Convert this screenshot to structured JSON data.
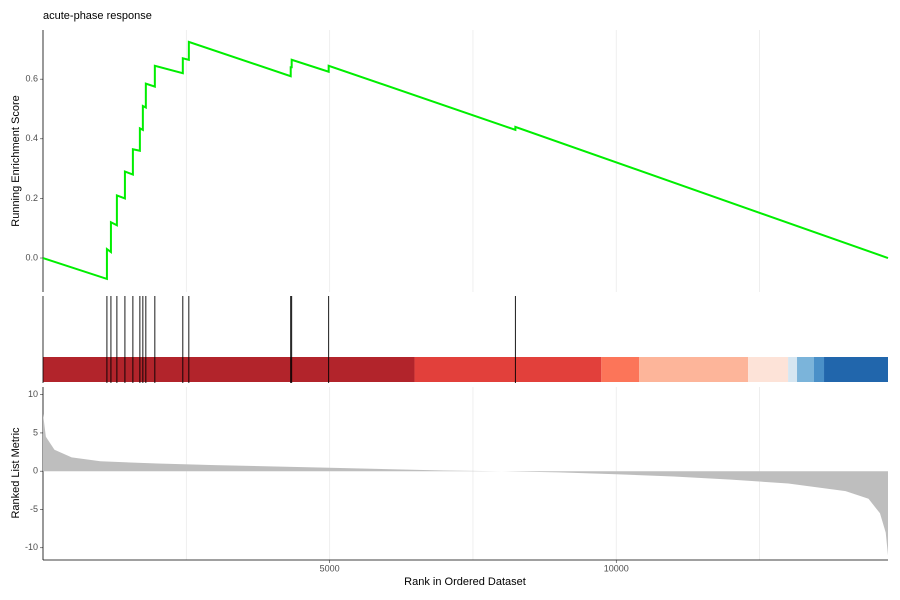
{
  "chart_data": [
    {
      "type": "line",
      "title": "acute-phase response",
      "ylabel": "Running Enrichment Score",
      "color": "#00ee00",
      "x": [
        0,
        1115,
        1115,
        1185,
        1185,
        1289,
        1289,
        1429,
        1429,
        1568,
        1568,
        1690,
        1690,
        1742,
        1742,
        1794,
        1794,
        1951,
        1951,
        2439,
        2439,
        2544,
        2544,
        4321,
        4321,
        4338,
        4338,
        4983,
        4983,
        8240,
        8240,
        14740
      ],
      "values": [
        0,
        -0.07,
        0.03,
        0.02,
        0.12,
        0.11,
        0.21,
        0.2,
        0.29,
        0.28,
        0.365,
        0.36,
        0.435,
        0.43,
        0.51,
        0.505,
        0.585,
        0.575,
        0.645,
        0.62,
        0.67,
        0.665,
        0.725,
        0.61,
        0.64,
        0.64,
        0.665,
        0.625,
        0.645,
        0.43,
        0.44,
        0
      ],
      "xlim": [
        0,
        14740
      ],
      "ylim": [
        -0.114,
        0.765
      ],
      "yticks": [
        {
          "value": 0,
          "label": "0.0"
        },
        0.2,
        0.4,
        0.6
      ],
      "xgrid": [
        2500,
        5000,
        7500,
        10000,
        12500
      ]
    },
    {
      "type": "rug",
      "hits": [
        1115,
        1185,
        1289,
        1429,
        1568,
        1690,
        1742,
        1794,
        1951,
        2439,
        2544,
        4321,
        4338,
        4983,
        8240
      ],
      "xlim": [
        0,
        14740
      ],
      "bands": {
        "breaks": [
          0,
          6481,
          9739,
          10401,
          12300,
          12997,
          13153,
          13449,
          13624,
          14740
        ],
        "colors": [
          "#b2242b",
          "#e2403b",
          "#fc7559",
          "#fdb59a",
          "#fde3d8",
          "#d6e6f1",
          "#7bb4da",
          "#4a90c8",
          "#2166ac"
        ]
      }
    },
    {
      "type": "area",
      "ylabel": "Ranked List Metric",
      "xlabel": "Rank in Ordered Dataset",
      "color": "#bebebe",
      "x": [
        0,
        50,
        200,
        500,
        1000,
        2000,
        3000,
        5000,
        7000,
        8000,
        9000,
        10000,
        11000,
        12000,
        13000,
        14000,
        14400,
        14600,
        14700,
        14740
      ],
      "values": [
        7.5,
        4.5,
        2.8,
        1.8,
        1.3,
        1.0,
        0.8,
        0.45,
        0.1,
        0,
        -0.15,
        -0.4,
        -0.7,
        -1.1,
        -1.6,
        -2.6,
        -3.6,
        -5.5,
        -8,
        -11
      ],
      "xlim": [
        0,
        14740
      ],
      "ylim": [
        -11.6,
        11
      ],
      "yticks": [
        -10,
        -5,
        0,
        5,
        10
      ],
      "xticks": [
        5000,
        10000
      ],
      "xgrid": [
        2500,
        5000,
        7500,
        10000,
        12500
      ]
    }
  ]
}
